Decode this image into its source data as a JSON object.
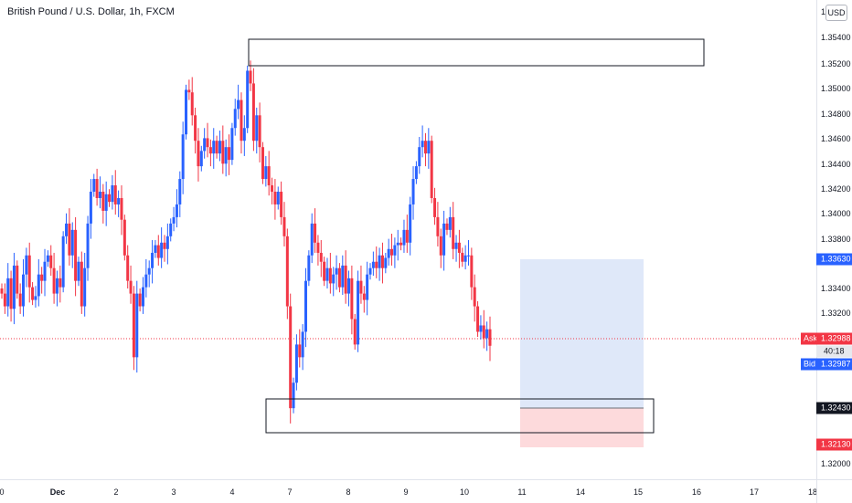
{
  "header": {
    "symbol_title": "British Pound / U.S. Dollar, 1h, FXCM"
  },
  "price_axis": {
    "currency": "USD",
    "ticks": [
      "1.35400",
      "1.35200",
      "1.35000",
      "1.34800",
      "1.34600",
      "1.34400",
      "1.34200",
      "1.34000",
      "1.33800",
      "1.33400",
      "1.33200",
      "1.32600",
      "1.32000"
    ],
    "top_tick_partial": "1."
  },
  "price_labels": {
    "level_high": "1.33630",
    "ask_tag": "Ask",
    "ask_value": "1.32988",
    "countdown": "40:18",
    "bid_tag": "Bid",
    "bid_value": "1.32987",
    "entry": "1.32430",
    "stop": "1.32130"
  },
  "time_axis": {
    "ticks": [
      "0",
      "Dec",
      "2",
      "3",
      "4",
      "7",
      "8",
      "9",
      "10",
      "11",
      "14",
      "15",
      "16",
      "17",
      "18"
    ]
  },
  "colors": {
    "up": "#2962ff",
    "down": "#f23645",
    "ask": "#f23645",
    "bid": "#2962ff",
    "target_zone": "#dbe6f8",
    "stop_zone": "#fdd6d8"
  },
  "chart_data": {
    "type": "candlestick",
    "symbol": "British Pound / U.S. Dollar, 1h, FXCM",
    "ylim": [
      1.319,
      1.3562
    ],
    "last_price": 1.32988,
    "close_path": [
      [
        1.334,
        1.333,
        1.3352,
        1.3328,
        1.3362,
        1.334,
        1.333,
        1.3355,
        1.337,
        1.3345,
        1.3335,
        1.3338,
        1.3355,
        1.335,
        1.3365,
        1.337,
        1.336,
        1.334,
        1.3352,
        1.3345,
        1.3385,
        1.3395,
        1.337,
        1.339,
        1.335,
        1.3365,
        1.333,
        1.336,
        1.3395,
        1.342,
        1.343,
        1.3415,
        1.342,
        1.3405,
        1.3418,
        1.3412,
        1.3425,
        1.341,
        1.3415,
        1.3398,
        1.337,
        1.335,
        1.334,
        1.329,
        1.334,
        1.333,
        1.3345,
        1.3355,
        1.336,
        1.3372,
        1.3378,
        1.3368,
        1.338,
        1.3375,
        1.3385,
        1.3395,
        1.34,
        1.341,
        1.343,
        1.3465,
        1.35,
        1.3498,
        1.348,
        1.346,
        1.344,
        1.3452,
        1.3462,
        1.3455,
        1.345,
        1.346,
        1.345,
        1.346,
        1.3442,
        1.3455,
        1.3445,
        1.347,
        1.3485,
        1.3492,
        1.346,
        1.347,
        1.3515,
        1.3505
      ],
      [
        1.346,
        1.348,
        1.3455,
        1.343,
        1.344,
        1.3425,
        1.342,
        1.341,
        1.342,
        1.34,
        1.3385,
        1.333,
        1.325,
        1.327,
        1.33,
        1.329,
        1.331,
        1.335,
        1.337,
        1.3395,
        1.338,
        1.3372,
        1.3365,
        1.335,
        1.336,
        1.3348,
        1.3355,
        1.336,
        1.3345,
        1.3362,
        1.334,
        1.3352,
        1.332,
        1.33,
        1.335,
        1.334,
        1.3335,
        1.3355,
        1.336,
        1.3365,
        1.336,
        1.337,
        1.336,
        1.3368,
        1.3375,
        1.337,
        1.3378,
        1.338,
        1.3378,
        1.339,
        1.338,
        1.341,
        1.343,
        1.344,
        1.3455,
        1.346,
        1.345,
        1.346,
        1.3415,
        1.34,
        1.3385,
        1.337,
        1.3395,
        1.339,
        1.34,
        1.3375,
        1.338,
        1.3372,
        1.3365,
        1.337,
        1.337,
        1.3345,
        1.333,
        1.331,
        1.3315,
        1.3305,
        1.3312,
        1.3299
      ]
    ]
  }
}
